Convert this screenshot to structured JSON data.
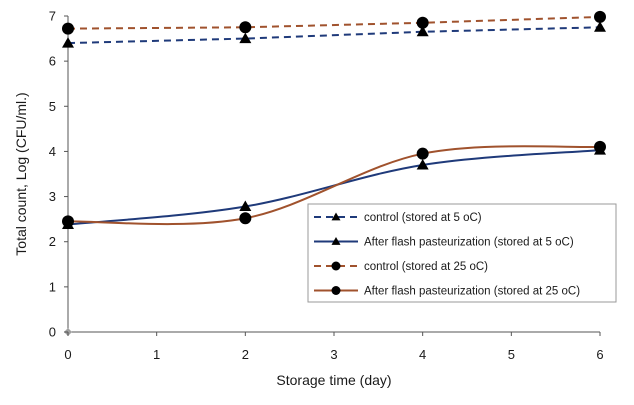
{
  "chart_data": {
    "type": "line",
    "xlabel": "Storage time (day)",
    "ylabel": "Total count, Log (CFU/ml.)",
    "xlim": [
      0,
      6
    ],
    "ylim": [
      0,
      7
    ],
    "x_ticks": [
      0,
      1,
      2,
      3,
      4,
      5,
      6
    ],
    "y_ticks": [
      0,
      1,
      2,
      3,
      4,
      5,
      6,
      7
    ],
    "grid": false,
    "legend_position": "bottom-right",
    "series": [
      {
        "name": "control (stored at 5 oC)",
        "x": [
          0,
          2,
          4,
          6
        ],
        "y": [
          6.4,
          6.5,
          6.65,
          6.75
        ],
        "color": "#1f3a7a",
        "line_style": "dashed",
        "marker": "triangle",
        "smooth": false
      },
      {
        "name": "After flash pasteurization (stored at 5 oC)",
        "x": [
          0,
          2,
          4,
          6
        ],
        "y": [
          2.38,
          2.78,
          3.7,
          4.03
        ],
        "color": "#1f3a7a",
        "line_style": "solid",
        "marker": "triangle",
        "smooth": true
      },
      {
        "name": "control (stored at 25 oC)",
        "x": [
          0,
          2,
          4,
          6
        ],
        "y": [
          6.72,
          6.75,
          6.85,
          6.98
        ],
        "color": "#a0522d",
        "line_style": "dashed",
        "marker": "circle",
        "smooth": false
      },
      {
        "name": "After flash pasteurization (stored at 25 oC)",
        "x": [
          0,
          2,
          4,
          6
        ],
        "y": [
          2.45,
          2.52,
          3.95,
          4.1
        ],
        "color": "#a0522d",
        "line_style": "solid",
        "marker": "circle",
        "smooth": true
      }
    ]
  }
}
